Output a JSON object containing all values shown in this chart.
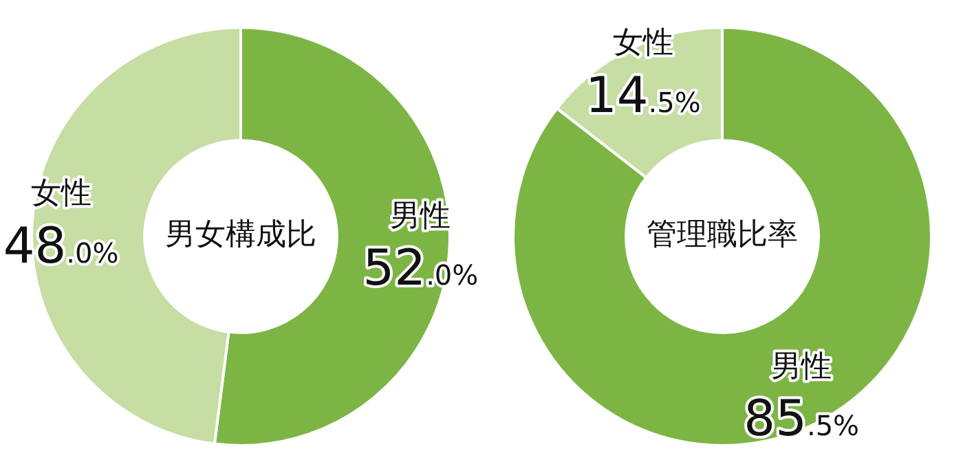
{
  "chart_data": [
    {
      "type": "donut",
      "title": "男女構成比",
      "categories": [
        "男性",
        "女性"
      ],
      "values": [
        52.0,
        48.0
      ],
      "colors": [
        "#7db545",
        "#c6dda3"
      ],
      "value_labels": [
        "52.0%",
        "48.0%"
      ]
    },
    {
      "type": "donut",
      "title": "管理職比率",
      "categories": [
        "男性",
        "女性"
      ],
      "values": [
        85.5,
        14.5
      ],
      "colors": [
        "#7db545",
        "#c6dda3"
      ],
      "value_labels": [
        "85.5%",
        "14.5%"
      ]
    }
  ]
}
